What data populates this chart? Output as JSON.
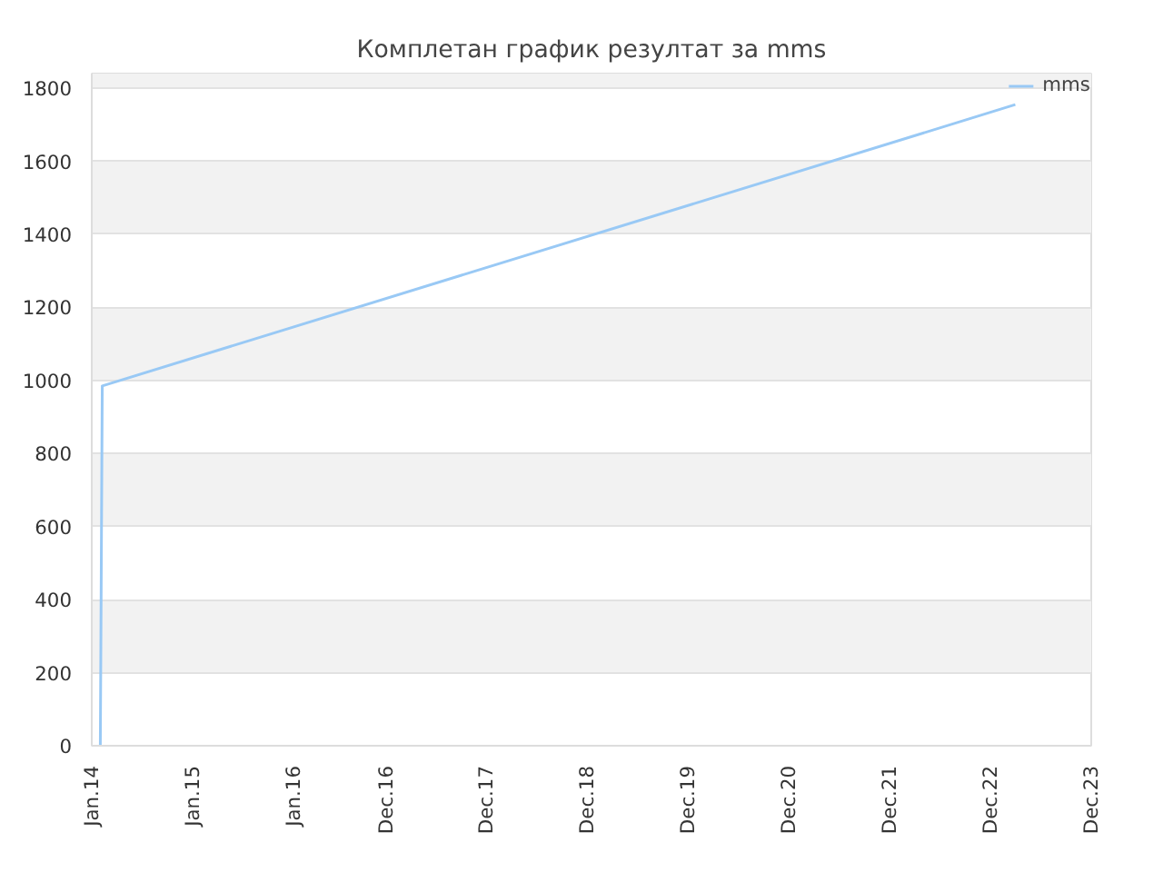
{
  "chart_data": {
    "type": "line",
    "title": "Комплетан график резултат за mms",
    "x": [
      "2014-02-01",
      "2014-02-08",
      "2023-03-01"
    ],
    "series": [
      {
        "name": "mms",
        "color": "#99c9f5",
        "values": [
          0,
          985,
          1755
        ]
      }
    ],
    "xlim": [
      "2014-01-01",
      "2023-12-01"
    ],
    "xticks": [
      {
        "value": "2014-01-01",
        "label": "Jan.14"
      },
      {
        "value": "2015-01-01",
        "label": "Jan.15"
      },
      {
        "value": "2016-01-01",
        "label": "Jan.16"
      },
      {
        "value": "2016-12-01",
        "label": "Dec.16"
      },
      {
        "value": "2017-12-01",
        "label": "Dec.17"
      },
      {
        "value": "2018-12-01",
        "label": "Dec.18"
      },
      {
        "value": "2019-12-01",
        "label": "Dec.19"
      },
      {
        "value": "2020-12-01",
        "label": "Dec.20"
      },
      {
        "value": "2021-12-01",
        "label": "Dec.21"
      },
      {
        "value": "2022-12-01",
        "label": "Dec.22"
      },
      {
        "value": "2023-12-01",
        "label": "Dec.23"
      }
    ],
    "ylim": [
      0,
      1840
    ],
    "yticks": [
      0,
      200,
      400,
      600,
      800,
      1000,
      1200,
      1400,
      1600,
      1800
    ],
    "grid": "y",
    "legend": "top right",
    "marker": "none",
    "line_style": "solid"
  }
}
